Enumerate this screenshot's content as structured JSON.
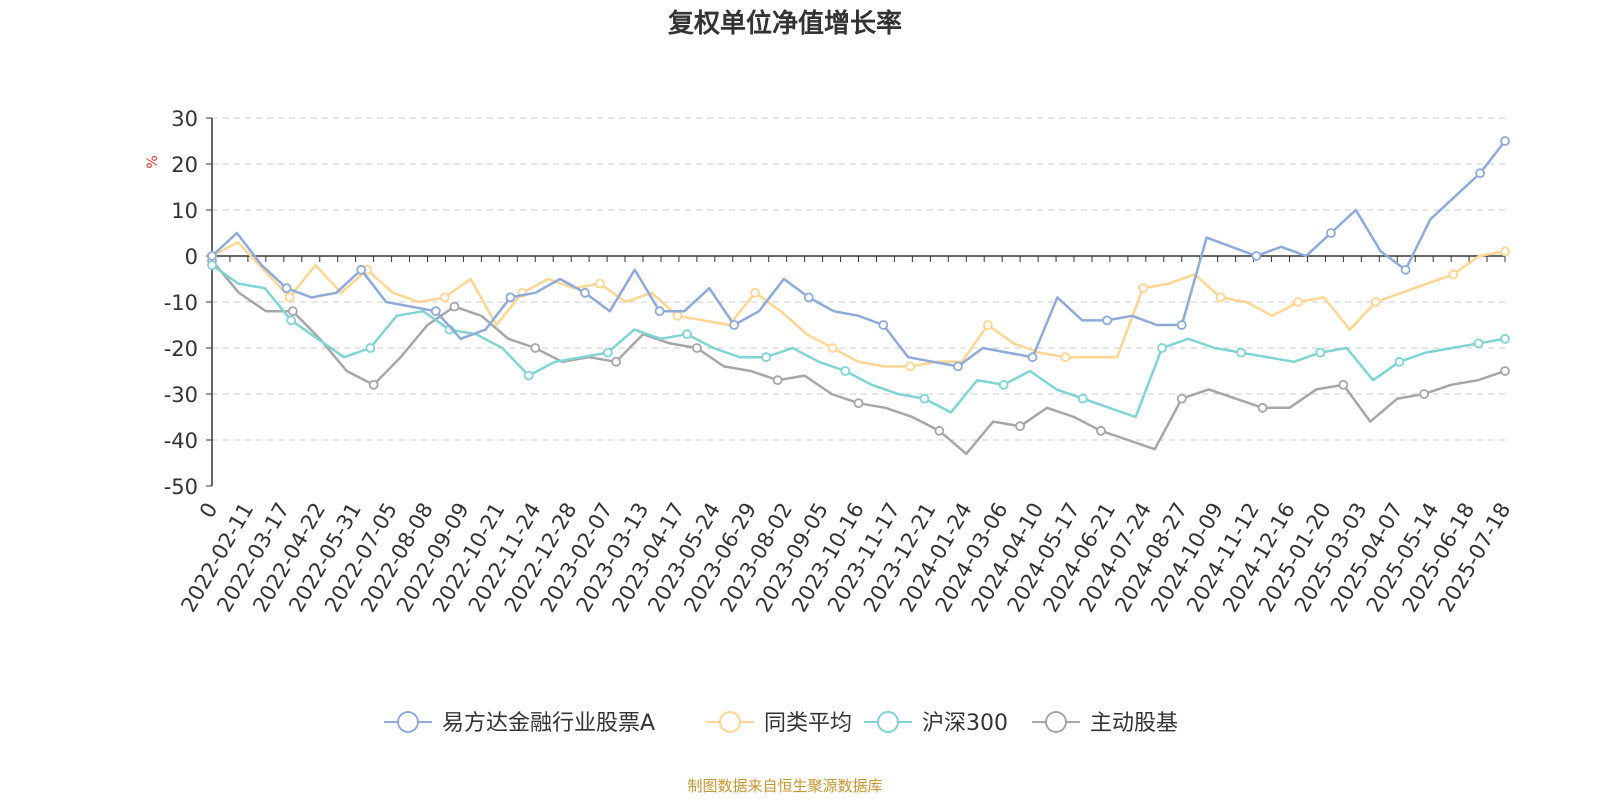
{
  "chart_data": {
    "type": "line",
    "title": "复权单位净值增长率",
    "ylabel": "%",
    "xlabel": "",
    "ylim": [
      -50,
      30
    ],
    "yticks": [
      30,
      20,
      10,
      0,
      -10,
      -20,
      -30,
      -40,
      -50
    ],
    "grid": true,
    "legend_position": "bottom",
    "x_tick_labels": [
      "0",
      "2022-02-11",
      "2022-03-17",
      "2022-04-22",
      "2022-05-31",
      "2022-07-05",
      "2022-08-08",
      "2022-09-09",
      "2022-10-21",
      "2022-11-24",
      "2022-12-28",
      "2023-02-07",
      "2023-03-13",
      "2023-04-17",
      "2023-05-24",
      "2023-06-29",
      "2023-08-02",
      "2023-09-05",
      "2023-10-16",
      "2023-11-17",
      "2023-12-21",
      "2024-01-24",
      "2024-03-06",
      "2024-04-10",
      "2024-05-17",
      "2024-06-21",
      "2024-07-24",
      "2024-08-27",
      "2024-10-09",
      "2024-11-12",
      "2024-12-16",
      "2025-01-20",
      "2025-03-03",
      "2025-04-07",
      "2025-05-14",
      "2025-06-18",
      "2025-07-18"
    ],
    "series": [
      {
        "name": "易方达金融行业股票A",
        "color": "#8eaadb",
        "values": [
          0,
          5,
          -2,
          -7,
          -9,
          -8,
          -3,
          -10,
          -11,
          -12,
          -18,
          -16,
          -9,
          -8,
          -5,
          -8,
          -12,
          -3,
          -12,
          -12,
          -7,
          -15,
          -12,
          -5,
          -9,
          -12,
          -13,
          -15,
          -22,
          -23,
          -24,
          -20,
          -21,
          -22,
          -9,
          -14,
          -14,
          -13,
          -15,
          -15,
          4,
          2,
          0,
          2,
          0,
          5,
          10,
          1,
          -3,
          8,
          13,
          18,
          25
        ]
      },
      {
        "name": "同类平均",
        "color": "#ffd591",
        "values": [
          0,
          3,
          -3,
          -9,
          -2,
          -8,
          -3,
          -8,
          -10,
          -9,
          -5,
          -15,
          -8,
          -5,
          -7,
          -6,
          -10,
          -8,
          -13,
          -14,
          -15,
          -8,
          -12,
          -17,
          -20,
          -23,
          -24,
          -24,
          -23,
          -23,
          -15,
          -19,
          -21,
          -22,
          -22,
          -22,
          -7,
          -6,
          -4,
          -9,
          -10,
          -13,
          -10,
          -9,
          -16,
          -10,
          -8,
          -6,
          -4,
          0,
          1
        ]
      },
      {
        "name": "沪深300",
        "color": "#7fd4d4",
        "values": [
          -2,
          -6,
          -7,
          -14,
          -18,
          -22,
          -20,
          -13,
          -12,
          -16,
          -17,
          -20,
          -26,
          -23,
          -22,
          -21,
          -16,
          -18,
          -17,
          -20,
          -22,
          -22,
          -20,
          -23,
          -25,
          -28,
          -30,
          -31,
          -34,
          -27,
          -28,
          -25,
          -29,
          -31,
          -33,
          -35,
          -20,
          -18,
          -20,
          -21,
          -22,
          -23,
          -21,
          -20,
          -27,
          -23,
          -21,
          -20,
          -19,
          -18
        ]
      },
      {
        "name": "主动股基",
        "color": "#a6a6a6",
        "values": [
          -1,
          -8,
          -12,
          -12,
          -18,
          -25,
          -28,
          -22,
          -15,
          -11,
          -13,
          -18,
          -20,
          -23,
          -22,
          -23,
          -17,
          -19,
          -20,
          -24,
          -25,
          -27,
          -26,
          -30,
          -32,
          -33,
          -35,
          -38,
          -43,
          -36,
          -37,
          -33,
          -35,
          -38,
          -40,
          -42,
          -31,
          -29,
          -31,
          -33,
          -33,
          -29,
          -28,
          -36,
          -31,
          -30,
          -28,
          -27,
          -25
        ]
      }
    ]
  },
  "footer": {
    "source_text": "制图数据来自恒生聚源数据库"
  }
}
